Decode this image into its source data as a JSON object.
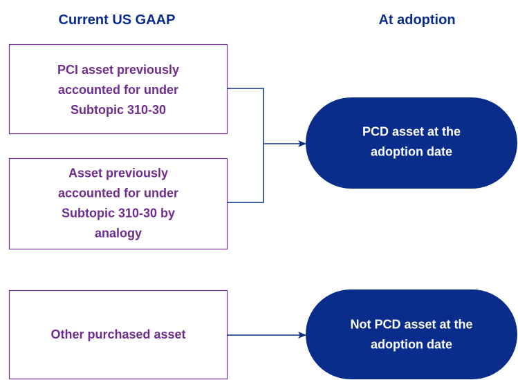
{
  "headers": [
    "Current US GAAP",
    "At adoption"
  ],
  "boxes": [
    {
      "lines": [
        "PCI asset previously",
        "accounted for under",
        "Subtopic 310-30"
      ]
    },
    {
      "lines": [
        "Asset previously",
        "accounted for under",
        "Subtopic 310-30 by",
        "analogy"
      ]
    },
    {
      "lines": [
        "Other purchased asset"
      ]
    }
  ],
  "outcomes": [
    {
      "lines": [
        "PCD asset at the",
        "adoption date"
      ]
    },
    {
      "lines": [
        "Not PCD asset at the",
        "adoption date"
      ]
    }
  ]
}
